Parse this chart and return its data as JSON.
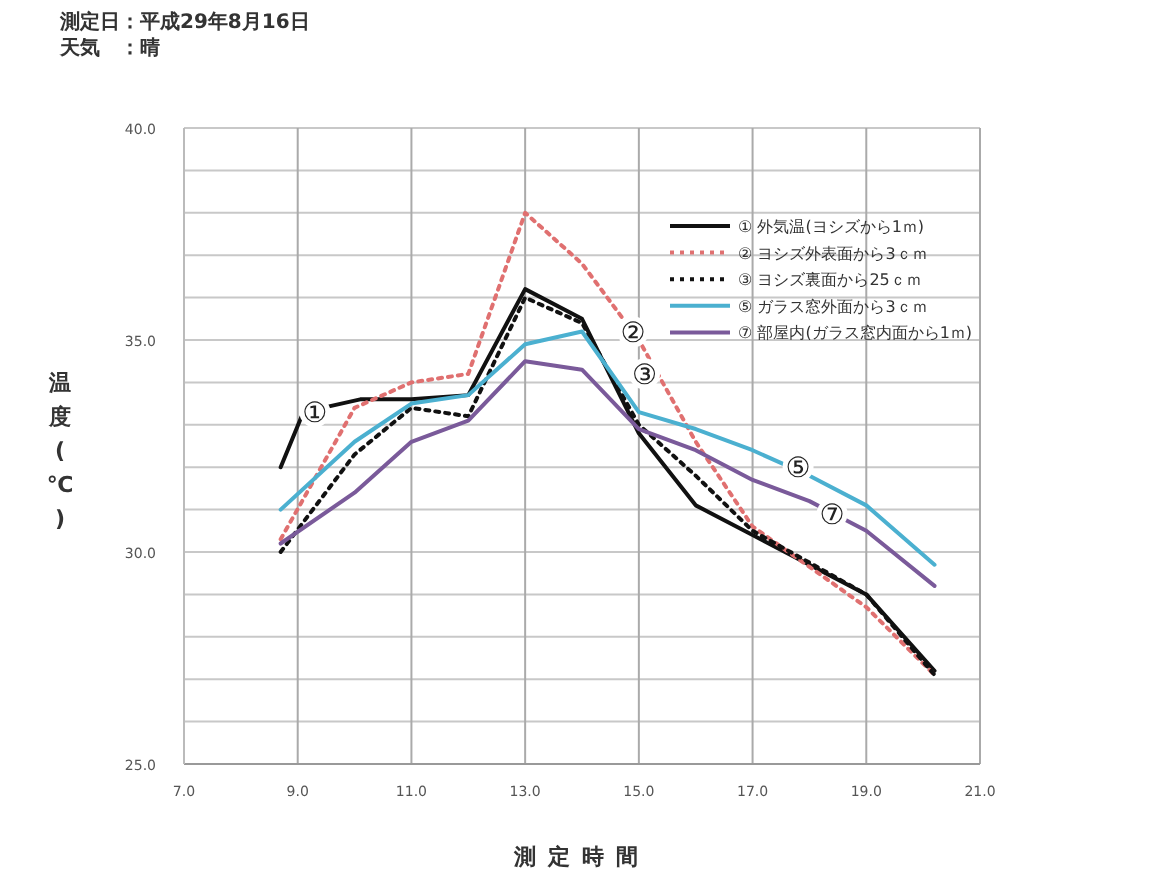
{
  "chart_data": {
    "type": "line",
    "title": "測定日：平成29年8月16日",
    "subtitle": "天気　：晴",
    "xlabel": "測定時間",
    "ylabel": "温度(℃)",
    "xlim": [
      7,
      21
    ],
    "ylim": [
      25,
      40
    ],
    "xticks": [
      {
        "value": 7,
        "label": "7.0"
      },
      {
        "value": 9,
        "label": "9.0"
      },
      {
        "value": 11,
        "label": "11.0"
      },
      {
        "value": 13,
        "label": "13.0"
      },
      {
        "value": 15,
        "label": "15.0"
      },
      {
        "value": 17,
        "label": "17.0"
      },
      {
        "value": 19,
        "label": "19.0"
      },
      {
        "value": 21,
        "label": "21.0"
      }
    ],
    "yticks": [
      {
        "value": 25,
        "label": "25.0"
      },
      {
        "value": 26,
        "label": null
      },
      {
        "value": 27,
        "label": null
      },
      {
        "value": 28,
        "label": null
      },
      {
        "value": 29,
        "label": null
      },
      {
        "value": 30,
        "label": "30.0"
      },
      {
        "value": 31,
        "label": null
      },
      {
        "value": 32,
        "label": null
      },
      {
        "value": 33,
        "label": null
      },
      {
        "value": 34,
        "label": null
      },
      {
        "value": 35,
        "label": "35.0"
      },
      {
        "value": 36,
        "label": null
      },
      {
        "value": 37,
        "label": null
      },
      {
        "value": 38,
        "label": null
      },
      {
        "value": 39,
        "label": null
      },
      {
        "value": 40,
        "label": "40.0"
      }
    ],
    "grid": true,
    "legend": "top right",
    "marker": "none",
    "series": [
      {
        "name": "① 外気温(ヨシズから1ｍ)",
        "color": "#111111",
        "line_style": "solid",
        "x": [
          8.7,
          9.1,
          10.1,
          11.0,
          12.0,
          13.0,
          14.0,
          15.0,
          16.0,
          17.0,
          19.0,
          20.2
        ],
        "values": [
          32.0,
          33.3,
          33.6,
          33.6,
          33.7,
          36.2,
          35.5,
          32.8,
          31.1,
          30.4,
          29.0,
          27.2
        ]
      },
      {
        "name": "② ヨシズ外表面から3ｃｍ",
        "color": "#e07070",
        "line_style": "dotted",
        "x": [
          8.7,
          10.0,
          11.0,
          12.0,
          13.0,
          14.0,
          15.0,
          16.0,
          17.0,
          19.0,
          20.2
        ],
        "values": [
          30.3,
          33.4,
          34.0,
          34.2,
          38.0,
          36.8,
          35.0,
          32.6,
          30.6,
          28.7,
          27.1
        ]
      },
      {
        "name": "③ ヨシズ裏面から25ｃｍ",
        "color": "#111111",
        "line_style": "dotted",
        "x": [
          8.7,
          10.0,
          11.0,
          12.0,
          13.0,
          14.0,
          15.0,
          16.0,
          17.0,
          19.0,
          20.2
        ],
        "values": [
          30.0,
          32.3,
          33.4,
          33.2,
          36.0,
          35.4,
          33.0,
          31.8,
          30.5,
          29.0,
          27.1
        ]
      },
      {
        "name": "⑤ ガラス窓外面から3ｃｍ",
        "color": "#4bb0d0",
        "line_style": "solid",
        "x": [
          8.7,
          10.0,
          11.0,
          12.0,
          13.0,
          14.0,
          15.0,
          16.0,
          17.0,
          18.0,
          19.0,
          20.2
        ],
        "values": [
          31.0,
          32.6,
          33.5,
          33.7,
          34.9,
          35.2,
          33.3,
          32.9,
          32.4,
          31.8,
          31.1,
          29.7
        ]
      },
      {
        "name": "⑦ 部屋内(ガラス窓内面から1ｍ)",
        "color": "#7a5a9a",
        "line_style": "solid",
        "x": [
          8.7,
          10.0,
          11.0,
          12.0,
          13.0,
          14.0,
          15.0,
          16.0,
          17.0,
          18.0,
          19.0,
          20.2
        ],
        "values": [
          30.2,
          31.4,
          32.6,
          33.1,
          34.5,
          34.3,
          32.9,
          32.4,
          31.7,
          31.2,
          30.5,
          29.2
        ]
      }
    ],
    "annotations": [
      {
        "text": "①",
        "x": 9.3,
        "y": 33.3
      },
      {
        "text": "②",
        "x": 14.9,
        "y": 35.2
      },
      {
        "text": "③",
        "x": 15.1,
        "y": 34.2
      },
      {
        "text": "⑤",
        "x": 17.8,
        "y": 32.0
      },
      {
        "text": "⑦",
        "x": 18.4,
        "y": 30.9
      }
    ]
  }
}
